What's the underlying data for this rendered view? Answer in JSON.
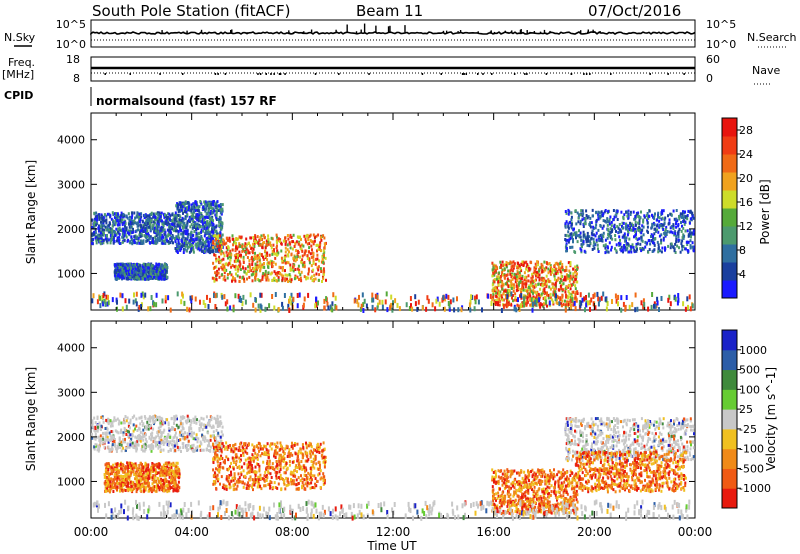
{
  "header": {
    "title": "South Pole Station (fitACF)",
    "beam": "Beam 11",
    "date": "07/Oct/2016"
  },
  "top_panels": {
    "nsky_label": "N.Sky",
    "nsearch_label": "N.Search",
    "nsky_ticks": [
      "10^5",
      "10^0"
    ],
    "nsearch_ticks": [
      "10^5",
      "10^0"
    ],
    "freq_label": "Freq.",
    "freq_unit": "[MHz]",
    "freq_ticks": [
      "18",
      "8"
    ],
    "nave_label": "Nave",
    "nave_ticks": [
      "60",
      "0"
    ],
    "cpid_label": "CPID",
    "cpid_text": "normalsound (fast) 157 RF"
  },
  "chart_data": [
    {
      "type": "heatmap",
      "parameter": "Power",
      "ylabel": "Slant Range [km]",
      "xlabel": "",
      "yticks": [
        "1000",
        "2000",
        "3000",
        "4000"
      ],
      "ylim": [
        180,
        4600
      ],
      "xlim": [
        0,
        24
      ],
      "colorbar_label": "Power [dB]",
      "colorbar_ticks": [
        "4",
        "8",
        "12",
        "16",
        "20",
        "24",
        "28"
      ],
      "colorbar_range": [
        0,
        30
      ],
      "colors": [
        "#1a1aff",
        "#1a3f9e",
        "#2f6fa0",
        "#4c9a6e",
        "#55aa3a",
        "#cddc2a",
        "#f0a21e",
        "#f06a16",
        "#f03c14",
        "#e8140e"
      ],
      "echo_regions": [
        {
          "t": [
            0.0,
            3.3
          ],
          "r": [
            1700,
            2400
          ],
          "level": "low"
        },
        {
          "t": [
            3.3,
            5.2
          ],
          "r": [
            1500,
            2650
          ],
          "level": "low"
        },
        {
          "t": [
            0.9,
            3.0
          ],
          "r": [
            900,
            1250
          ],
          "level": "low"
        },
        {
          "t": [
            4.8,
            9.3
          ],
          "r": [
            850,
            1900
          ],
          "level": "high"
        },
        {
          "t": [
            15.9,
            19.3
          ],
          "r": [
            300,
            1300
          ],
          "level": "high"
        },
        {
          "t": [
            18.8,
            24.0
          ],
          "r": [
            1500,
            2450
          ],
          "level": "low"
        },
        {
          "t": [
            0.0,
            24.0
          ],
          "r": [
            200,
            600
          ],
          "level": "scattered"
        }
      ]
    },
    {
      "type": "heatmap",
      "parameter": "Velocity",
      "ylabel": "Slant Range [km]",
      "xlabel": "Time UT",
      "xticks": [
        "00:00",
        "04:00",
        "08:00",
        "12:00",
        "16:00",
        "20:00",
        "00:00"
      ],
      "yticks": [
        "1000",
        "2000",
        "3000",
        "4000"
      ],
      "ylim": [
        180,
        4600
      ],
      "xlim": [
        0,
        24
      ],
      "colorbar_label": "Velocity [m s^-1]",
      "colorbar_ticks": [
        "1000",
        "500",
        "100",
        "25",
        "-25",
        "-100",
        "-500",
        "-1000"
      ],
      "colors": [
        "#1a22c8",
        "#2c5ea8",
        "#3f8a3c",
        "#66cc33",
        "#c8c8c8",
        "#f0c020",
        "#f08a18",
        "#f05a14",
        "#e81a0e"
      ],
      "echo_regions": [
        {
          "t": [
            0.0,
            5.2
          ],
          "r": [
            1700,
            2500
          ],
          "level": "ground"
        },
        {
          "t": [
            0.5,
            3.5
          ],
          "r": [
            800,
            1450
          ],
          "level": "away"
        },
        {
          "t": [
            4.8,
            9.3
          ],
          "r": [
            850,
            1900
          ],
          "level": "away"
        },
        {
          "t": [
            15.9,
            19.3
          ],
          "r": [
            300,
            1300
          ],
          "level": "away"
        },
        {
          "t": [
            18.8,
            24.0
          ],
          "r": [
            1500,
            2450
          ],
          "level": "ground"
        },
        {
          "t": [
            19.2,
            23.6
          ],
          "r": [
            800,
            1700
          ],
          "level": "away"
        },
        {
          "t": [
            0.0,
            24.0
          ],
          "r": [
            200,
            600
          ],
          "level": "ground"
        }
      ]
    }
  ]
}
